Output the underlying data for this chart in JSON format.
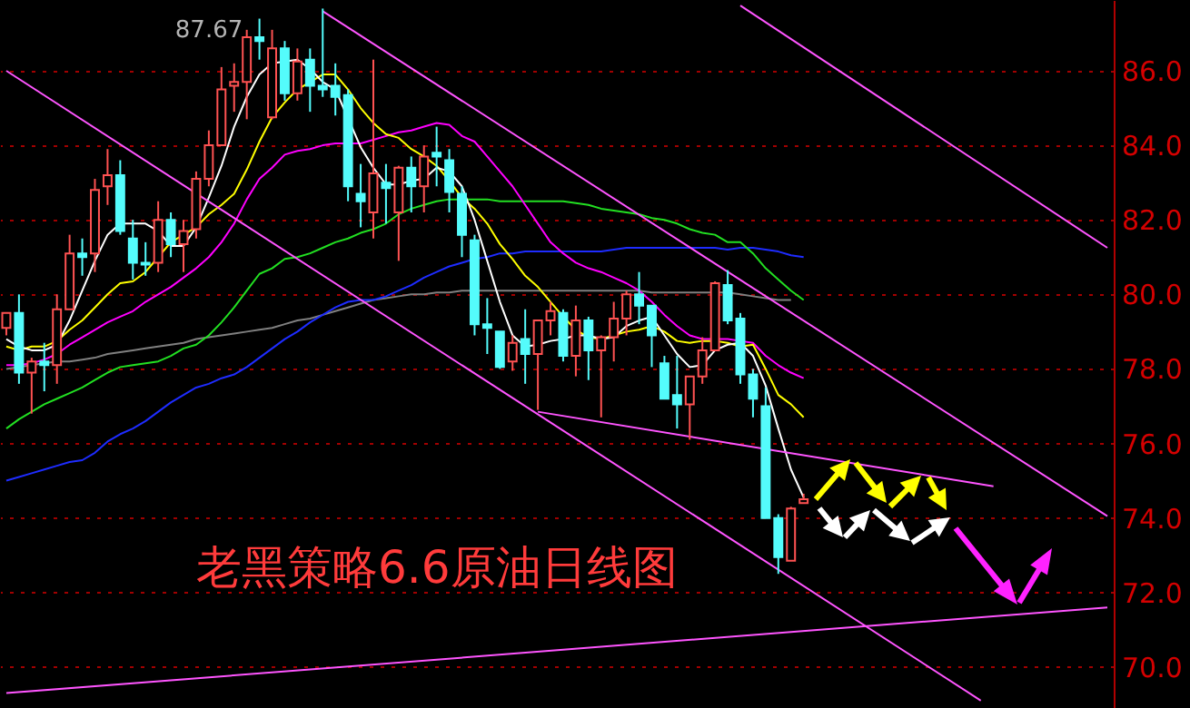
{
  "chart_data": {
    "type": "candlestick",
    "title": "老黑策略6.6原油日线图",
    "annotations": [
      "87.67"
    ],
    "categories": [
      null,
      null,
      null,
      null,
      null,
      null,
      null,
      null,
      null,
      null,
      null,
      null,
      null,
      null,
      null,
      null,
      null,
      null,
      null,
      null,
      null,
      null,
      null,
      null,
      null,
      null,
      null,
      null,
      null,
      null,
      null,
      null,
      null,
      null,
      null,
      null,
      null,
      null,
      null,
      null,
      null,
      null,
      null,
      null,
      null,
      null,
      null,
      null,
      null,
      null,
      null,
      null,
      null,
      null,
      null,
      null,
      null,
      null,
      null,
      null,
      null,
      null,
      null,
      null,
      null,
      null,
      null,
      null,
      null,
      null,
      null,
      null,
      null,
      null,
      null,
      null,
      null,
      null,
      null,
      null,
      null,
      null,
      null,
      null,
      null,
      null,
      null,
      null
    ],
    "ohlc": [
      [
        79.1,
        79.5,
        78.9,
        79.5
      ],
      [
        79.5,
        80.0,
        77.6,
        77.9
      ],
      [
        77.9,
        78.3,
        76.8,
        78.2
      ],
      [
        78.2,
        78.7,
        77.4,
        78.1
      ],
      [
        78.1,
        80.0,
        77.6,
        79.6
      ],
      [
        79.6,
        81.6,
        79.6,
        81.1
      ],
      [
        81.1,
        81.5,
        80.5,
        81.0
      ],
      [
        81.1,
        83.1,
        80.6,
        82.8
      ],
      [
        82.9,
        83.9,
        82.4,
        83.2
      ],
      [
        83.2,
        83.6,
        81.6,
        81.7
      ],
      [
        81.5,
        82.0,
        80.4,
        80.85
      ],
      [
        80.85,
        81.4,
        80.5,
        80.8
      ],
      [
        80.85,
        82.5,
        80.6,
        82.0
      ],
      [
        82.0,
        82.2,
        81.0,
        81.35
      ],
      [
        81.35,
        82.0,
        80.6,
        81.7
      ],
      [
        81.75,
        83.3,
        81.5,
        83.1
      ],
      [
        83.1,
        84.4,
        82.9,
        84.0
      ],
      [
        84.0,
        86.1,
        84.0,
        85.5
      ],
      [
        85.6,
        86.2,
        84.9,
        85.7
      ],
      [
        85.7,
        87.1,
        84.7,
        86.9
      ],
      [
        86.9,
        87.4,
        86.3,
        86.8
      ],
      [
        84.75,
        87.1,
        84.7,
        86.6
      ],
      [
        86.6,
        86.8,
        85.2,
        85.4
      ],
      [
        85.4,
        86.6,
        85.2,
        86.25
      ],
      [
        86.3,
        86.6,
        84.9,
        85.6
      ],
      [
        85.6,
        87.67,
        85.3,
        85.5
      ],
      [
        85.6,
        86.2,
        84.8,
        85.3
      ],
      [
        85.35,
        85.5,
        82.5,
        82.9
      ],
      [
        82.7,
        83.5,
        81.8,
        82.5
      ],
      [
        82.2,
        86.3,
        81.5,
        83.25
      ],
      [
        83.0,
        83.5,
        81.9,
        82.85
      ],
      [
        82.2,
        83.45,
        80.9,
        83.4
      ],
      [
        83.4,
        83.7,
        82.2,
        82.9
      ],
      [
        82.9,
        84.0,
        82.2,
        83.7
      ],
      [
        83.8,
        84.5,
        82.9,
        83.7
      ],
      [
        83.6,
        83.9,
        82.2,
        82.75
      ],
      [
        82.7,
        82.9,
        81.0,
        81.6
      ],
      [
        81.45,
        81.6,
        78.9,
        79.2
      ],
      [
        79.2,
        79.9,
        78.4,
        79.1
      ],
      [
        79.0,
        79.0,
        78.0,
        78.05
      ],
      [
        78.2,
        78.9,
        77.95,
        78.7
      ],
      [
        78.8,
        79.6,
        77.6,
        78.4
      ],
      [
        78.4,
        79.3,
        76.9,
        79.3
      ],
      [
        79.3,
        79.8,
        78.9,
        79.55
      ],
      [
        79.5,
        79.6,
        78.2,
        78.35
      ],
      [
        78.35,
        79.7,
        77.8,
        79.3
      ],
      [
        79.3,
        79.4,
        77.7,
        78.5
      ],
      [
        78.5,
        78.9,
        76.7,
        78.85
      ],
      [
        78.85,
        79.8,
        78.2,
        79.35
      ],
      [
        79.35,
        80.1,
        78.9,
        80.0
      ],
      [
        80.0,
        80.6,
        79.2,
        79.7
      ],
      [
        79.7,
        79.7,
        78.05,
        78.9
      ],
      [
        78.15,
        78.35,
        77.2,
        77.2
      ],
      [
        77.3,
        78.35,
        76.4,
        77.05
      ],
      [
        77.05,
        77.8,
        76.1,
        77.8
      ],
      [
        77.8,
        78.85,
        77.6,
        78.5
      ],
      [
        78.5,
        80.35,
        78.5,
        80.3
      ],
      [
        80.25,
        80.65,
        79.2,
        79.3
      ],
      [
        79.35,
        79.5,
        77.6,
        77.85
      ],
      [
        77.85,
        78.0,
        76.7,
        77.2
      ],
      [
        77.0,
        77.5,
        74.0,
        74.0
      ],
      [
        74.0,
        74.1,
        72.5,
        72.95
      ],
      [
        72.85,
        74.3,
        72.85,
        74.25
      ],
      [
        74.4,
        74.65,
        74.4,
        74.5
      ],
      null,
      null,
      null,
      null,
      null,
      null,
      null,
      null,
      null,
      null,
      null,
      null,
      null,
      null,
      null,
      null,
      null,
      null,
      null,
      null,
      null,
      null,
      null,
      null
    ],
    "colors": [
      "#ff5252",
      "#54fcfc",
      "#ff5252",
      "#54fcfc",
      "#ff5252",
      "#ff5252",
      "#54fcfc",
      "#ff5252",
      "#ff5252",
      "#54fcfc",
      "#54fcfc",
      "#54fcfc",
      "#ff5252",
      "#54fcfc",
      "#ff5252",
      "#ff5252",
      "#ff5252",
      "#ff5252",
      "#ff5252",
      "#ff5252",
      "#54fcfc",
      "#ff5252",
      "#54fcfc",
      "#ff5252",
      "#54fcfc",
      "#54fcfc",
      "#54fcfc",
      "#54fcfc",
      "#54fcfc",
      "#ff5252",
      "#54fcfc",
      "#ff5252",
      "#54fcfc",
      "#ff5252",
      "#54fcfc",
      "#54fcfc",
      "#54fcfc",
      "#54fcfc",
      "#54fcfc",
      "#54fcfc",
      "#ff5252",
      "#54fcfc",
      "#ff5252",
      "#ff5252",
      "#54fcfc",
      "#ff5252",
      "#54fcfc",
      "#ff5252",
      "#ff5252",
      "#ff5252",
      "#54fcfc",
      "#54fcfc",
      "#54fcfc",
      "#54fcfc",
      "#ff5252",
      "#ff5252",
      "#ff5252",
      "#54fcfc",
      "#54fcfc",
      "#54fcfc",
      "#54fcfc",
      "#54fcfc",
      "#ff5252",
      "#ff5252",
      null,
      null,
      null,
      null,
      null,
      null,
      null,
      null,
      null,
      null,
      null,
      null,
      null,
      null,
      null,
      null,
      null,
      null,
      null,
      null,
      null,
      null,
      null,
      null
    ],
    "series": [
      {
        "type": "line",
        "color": "#808080",
        "values": [
          78.0,
          78.05,
          78.1,
          78.15,
          78.2,
          78.2,
          78.25,
          78.3,
          78.4,
          78.45,
          78.5,
          78.55,
          78.6,
          78.65,
          78.7,
          78.8,
          78.85,
          78.9,
          78.95,
          79.0,
          79.05,
          79.1,
          79.2,
          79.3,
          79.35,
          79.45,
          79.55,
          79.65,
          79.75,
          79.85,
          79.9,
          79.95,
          80.0,
          80.0,
          80.05,
          80.05,
          80.1,
          80.1,
          80.1,
          80.1,
          80.1,
          80.1,
          80.1,
          80.1,
          80.1,
          80.1,
          80.1,
          80.1,
          80.1,
          80.1,
          80.1,
          80.05,
          80.05,
          80.05,
          80.05,
          80.05,
          80.05,
          80.05,
          80.0,
          79.95,
          79.9,
          79.85,
          79.85,
          null,
          null,
          null,
          null,
          null,
          null,
          null,
          null,
          null,
          null,
          null,
          null,
          null,
          null,
          null,
          null,
          null,
          null,
          null,
          null,
          null,
          null,
          null,
          null,
          null
        ]
      },
      {
        "type": "line",
        "color": "#1e2cff",
        "values": [
          75.0,
          75.1,
          75.2,
          75.3,
          75.4,
          75.5,
          75.55,
          75.75,
          76.05,
          76.25,
          76.4,
          76.6,
          76.85,
          77.1,
          77.3,
          77.5,
          77.6,
          77.75,
          77.85,
          78.05,
          78.3,
          78.55,
          78.8,
          79.0,
          79.25,
          79.45,
          79.65,
          79.8,
          79.85,
          79.85,
          79.95,
          80.1,
          80.25,
          80.45,
          80.6,
          80.75,
          80.85,
          80.95,
          81.0,
          81.1,
          81.1,
          81.15,
          81.15,
          81.15,
          81.15,
          81.15,
          81.15,
          81.15,
          81.2,
          81.25,
          81.25,
          81.25,
          81.25,
          81.25,
          81.25,
          81.25,
          81.25,
          81.2,
          81.25,
          81.25,
          81.2,
          81.15,
          81.05,
          81.0,
          null,
          null,
          null,
          null,
          null,
          null,
          null,
          null,
          null,
          null,
          null,
          null,
          null,
          null,
          null,
          null,
          null,
          null,
          null,
          null,
          null,
          null,
          null,
          null
        ]
      },
      {
        "type": "line",
        "color": "#22e022",
        "values": [
          76.4,
          76.65,
          76.85,
          77.05,
          77.2,
          77.35,
          77.5,
          77.7,
          77.9,
          78.05,
          78.1,
          78.15,
          78.2,
          78.35,
          78.55,
          78.65,
          78.9,
          79.25,
          79.65,
          80.1,
          80.55,
          80.7,
          80.95,
          81.0,
          81.1,
          81.25,
          81.4,
          81.5,
          81.65,
          81.75,
          81.9,
          82.15,
          82.3,
          82.4,
          82.5,
          82.55,
          82.55,
          82.55,
          82.55,
          82.5,
          82.5,
          82.5,
          82.5,
          82.5,
          82.5,
          82.45,
          82.4,
          82.3,
          82.25,
          82.2,
          82.15,
          82.05,
          82.0,
          81.9,
          81.75,
          81.65,
          81.6,
          81.4,
          81.4,
          81.1,
          80.7,
          80.4,
          80.1,
          79.85,
          null,
          null,
          null,
          null,
          null,
          null,
          null,
          null,
          null,
          null,
          null,
          null,
          null,
          null,
          null,
          null,
          null,
          null,
          null,
          null,
          null,
          null,
          null,
          null
        ]
      },
      {
        "type": "line",
        "color": "#ff00ff",
        "values": [
          78.1,
          78.1,
          78.15,
          78.25,
          78.4,
          78.65,
          78.85,
          79.05,
          79.25,
          79.4,
          79.55,
          79.8,
          80.0,
          80.2,
          80.45,
          80.7,
          81.0,
          81.4,
          81.9,
          82.55,
          83.1,
          83.4,
          83.75,
          83.85,
          83.9,
          84.0,
          84.05,
          84.05,
          84.05,
          84.15,
          84.25,
          84.35,
          84.4,
          84.5,
          84.6,
          84.55,
          84.25,
          84.1,
          83.7,
          83.3,
          82.9,
          82.4,
          81.9,
          81.4,
          81.1,
          80.85,
          80.7,
          80.6,
          80.45,
          80.3,
          80.1,
          79.8,
          79.45,
          79.15,
          78.9,
          78.8,
          78.8,
          78.8,
          78.75,
          78.7,
          78.35,
          78.1,
          77.9,
          77.75,
          null,
          null,
          null,
          null,
          null,
          null,
          null,
          null,
          null,
          null,
          null,
          null,
          null,
          null,
          null,
          null,
          null,
          null,
          null,
          null,
          null,
          null,
          null,
          null
        ]
      },
      {
        "type": "line",
        "color": "#ffff00",
        "values": [
          78.6,
          78.5,
          78.6,
          78.6,
          78.75,
          79.05,
          79.3,
          79.65,
          80.0,
          80.3,
          80.35,
          80.6,
          81.0,
          81.4,
          81.6,
          81.8,
          82.15,
          82.4,
          82.7,
          83.35,
          84.1,
          84.75,
          85.15,
          85.5,
          85.7,
          85.9,
          85.9,
          85.5,
          85.0,
          84.6,
          84.3,
          84.2,
          83.9,
          83.7,
          83.45,
          83.05,
          82.6,
          82.3,
          81.9,
          81.35,
          80.95,
          80.5,
          80.2,
          79.8,
          79.4,
          79.05,
          78.85,
          78.8,
          78.9,
          79.0,
          79.05,
          79.15,
          79.0,
          78.75,
          78.7,
          78.75,
          78.75,
          78.7,
          78.6,
          78.65,
          78.0,
          77.3,
          77.05,
          76.7,
          null,
          null,
          null,
          null,
          null,
          null,
          null,
          null,
          null,
          null,
          null,
          null,
          null,
          null,
          null,
          null,
          null,
          null,
          null,
          null,
          null,
          null,
          null,
          null
        ]
      },
      {
        "type": "line",
        "color": "#ffffff",
        "values": [
          78.8,
          78.6,
          78.5,
          78.5,
          78.65,
          79.3,
          80.1,
          80.9,
          81.6,
          81.9,
          81.9,
          81.9,
          81.7,
          81.3,
          81.3,
          81.8,
          82.6,
          83.45,
          84.5,
          85.3,
          85.9,
          86.2,
          86.25,
          86.3,
          86.05,
          85.7,
          85.5,
          null,
          83.95,
          83.4,
          82.95,
          82.95,
          83.05,
          83.1,
          83.4,
          83.3,
          82.9,
          82.0,
          80.9,
          79.8,
          78.9,
          78.6,
          78.65,
          78.75,
          78.8,
          78.9,
          78.9,
          78.8,
          78.85,
          79.15,
          79.3,
          79.4,
          78.9,
          78.4,
          78.05,
          78.1,
          78.5,
          78.65,
          78.7,
          78.35,
          77.55,
          76.4,
          75.3,
          74.55,
          null,
          null,
          null,
          null,
          null,
          null,
          null,
          null,
          null,
          null,
          null,
          null,
          null,
          null,
          null,
          null,
          null,
          null,
          null,
          null,
          null,
          null,
          null,
          null
        ]
      },
      {
        "type": "line",
        "color": "#ff55ff",
        "values": [
          86.0,
          null,
          null,
          null,
          null,
          null,
          null,
          null,
          null,
          null,
          null,
          null,
          null,
          null,
          null,
          null,
          null,
          null,
          null,
          null,
          null,
          null,
          null,
          null,
          null,
          null,
          null,
          null,
          null,
          null,
          null,
          null,
          null,
          null,
          null,
          null,
          null,
          null,
          null,
          null,
          null,
          null,
          null,
          null,
          null,
          null,
          null,
          null,
          null,
          null,
          null,
          null,
          null,
          null,
          null,
          null,
          null,
          null,
          null,
          null,
          null,
          null,
          null,
          null,
          null,
          null,
          null,
          null,
          null,
          null,
          null,
          null,
          null,
          null,
          null,
          null,
          null,
          69.1,
          null,
          null,
          null,
          null,
          null,
          null,
          null,
          null,
          null,
          null
        ]
      },
      {
        "type": "line",
        "color": "#ff55ff",
        "values": [
          null,
          null,
          null,
          null,
          null,
          null,
          null,
          null,
          null,
          null,
          null,
          null,
          null,
          null,
          null,
          null,
          null,
          null,
          null,
          null,
          null,
          null,
          null,
          null,
          null,
          87.6,
          null,
          null,
          null,
          null,
          null,
          null,
          null,
          null,
          null,
          null,
          null,
          null,
          null,
          null,
          null,
          null,
          null,
          null,
          null,
          null,
          null,
          null,
          null,
          null,
          null,
          null,
          null,
          null,
          null,
          null,
          null,
          null,
          null,
          null,
          null,
          null,
          null,
          null,
          null,
          null,
          null,
          null,
          null,
          null,
          null,
          null,
          null,
          null,
          null,
          null,
          null,
          null,
          null,
          null,
          null,
          null,
          null,
          null,
          null,
          null,
          null,
          74.05
        ]
      },
      {
        "type": "line",
        "color": "#ff55ff",
        "values": [
          null,
          null,
          null,
          null,
          null,
          null,
          null,
          null,
          null,
          null,
          null,
          null,
          null,
          null,
          null,
          null,
          null,
          null,
          null,
          null,
          null,
          null,
          null,
          null,
          null,
          null,
          null,
          null,
          null,
          null,
          null,
          null,
          null,
          null,
          null,
          null,
          null,
          null,
          null,
          null,
          null,
          null,
          null,
          null,
          null,
          null,
          null,
          null,
          null,
          null,
          null,
          null,
          null,
          null,
          null,
          null,
          null,
          null,
          87.75,
          null,
          null,
          null,
          null,
          null,
          null,
          null,
          null,
          null,
          null,
          null,
          null,
          null,
          null,
          null,
          null,
          null,
          null,
          null,
          null,
          null,
          null,
          null,
          null,
          null,
          null,
          null,
          null,
          81.25
        ]
      },
      {
        "type": "line",
        "color": "#ff55ff",
        "values": [
          null,
          null,
          null,
          null,
          null,
          null,
          null,
          null,
          null,
          null,
          null,
          null,
          null,
          null,
          null,
          null,
          null,
          null,
          null,
          null,
          null,
          null,
          null,
          null,
          null,
          null,
          null,
          null,
          null,
          null,
          null,
          null,
          null,
          null,
          null,
          null,
          null,
          null,
          null,
          null,
          null,
          null,
          76.85,
          null,
          null,
          null,
          null,
          null,
          null,
          null,
          null,
          null,
          null,
          null,
          null,
          null,
          null,
          null,
          null,
          null,
          null,
          null,
          null,
          null,
          null,
          null,
          null,
          null,
          null,
          null,
          null,
          null,
          null,
          null,
          null,
          null,
          null,
          null,
          74.85,
          null,
          null,
          null,
          null,
          null,
          null,
          null,
          null,
          null
        ]
      },
      {
        "type": "line",
        "color": "#ff55ff",
        "values": [
          69.3,
          null,
          null,
          null,
          null,
          null,
          null,
          null,
          null,
          null,
          null,
          null,
          null,
          null,
          null,
          null,
          null,
          null,
          null,
          null,
          null,
          null,
          null,
          null,
          null,
          null,
          null,
          null,
          null,
          null,
          null,
          null,
          null,
          null,
          null,
          null,
          null,
          null,
          null,
          null,
          null,
          null,
          null,
          null,
          null,
          null,
          null,
          null,
          null,
          null,
          null,
          null,
          null,
          null,
          null,
          null,
          null,
          null,
          null,
          null,
          null,
          null,
          null,
          null,
          null,
          null,
          null,
          null,
          null,
          null,
          null,
          null,
          null,
          null,
          null,
          null,
          null,
          null,
          null,
          null,
          null,
          null,
          null,
          null,
          null,
          null,
          null,
          71.6
        ]
      }
    ],
    "ylim": [
      68.9,
      87.9
    ],
    "yticks": [
      {
        "value": 70,
        "label": "70.0"
      },
      {
        "value": 72,
        "label": "72.0"
      },
      {
        "value": 74,
        "label": "74.0"
      },
      {
        "value": 76,
        "label": "76.0"
      },
      {
        "value": 78,
        "label": "78.0"
      },
      {
        "value": 80,
        "label": "80.0"
      },
      {
        "value": 82,
        "label": "82.0"
      },
      {
        "value": 84,
        "label": "84.0"
      },
      {
        "value": 86,
        "label": "86.0"
      }
    ],
    "grid": "y",
    "tick_labels": "y"
  }
}
